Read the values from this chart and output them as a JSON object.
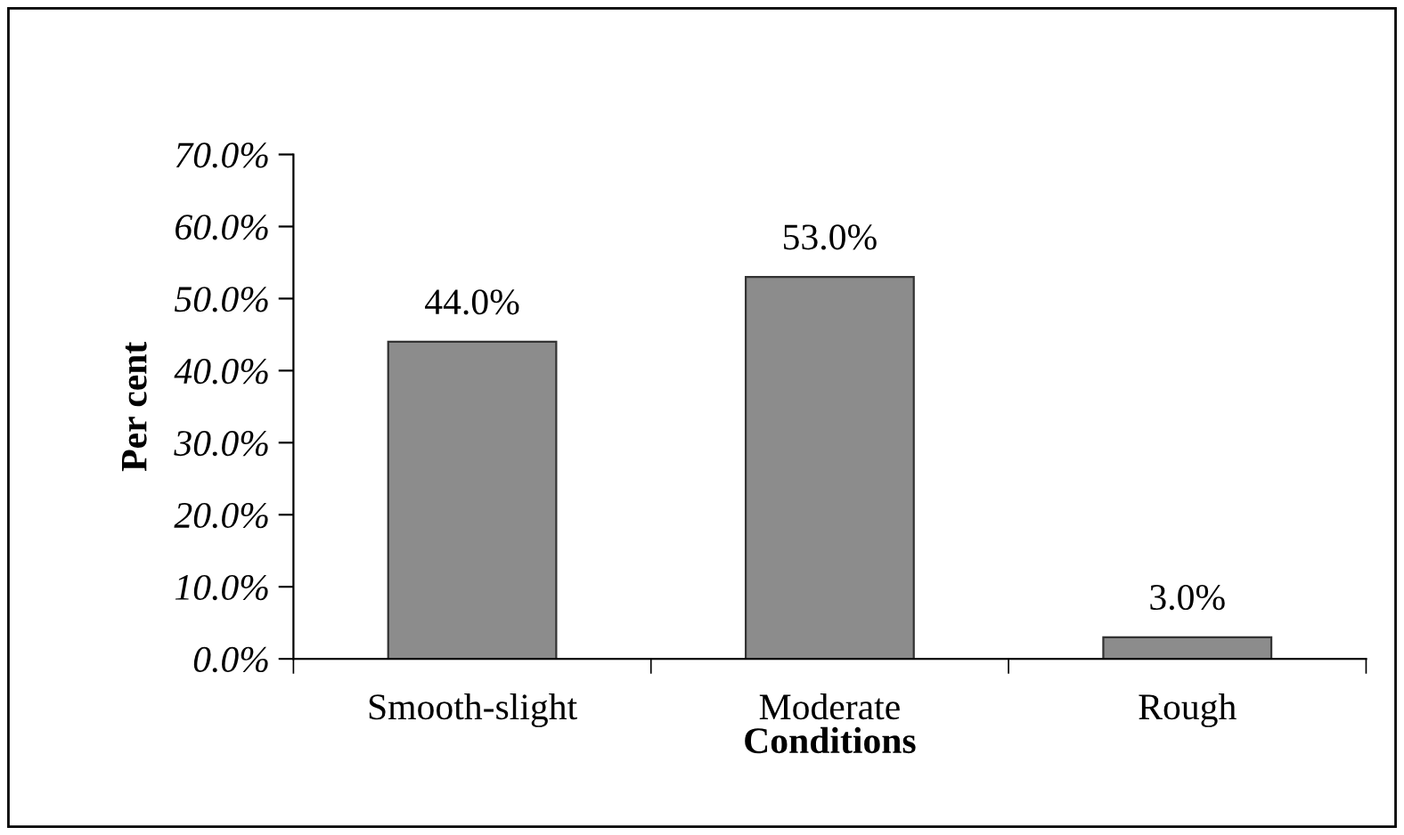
{
  "chart_data": {
    "type": "bar",
    "xlabel": "Conditions",
    "ylabel": "Per cent",
    "categories": [
      "Smooth-slight",
      "Moderate",
      "Rough"
    ],
    "values": [
      44.0,
      53.0,
      3.0
    ],
    "value_labels": [
      "44.0%",
      "53.0%",
      "3.0%"
    ],
    "color": "#8c8c8c",
    "ylim": [
      0,
      70
    ],
    "yticks": [
      {
        "value": 0,
        "label": "0.0%"
      },
      {
        "value": 10,
        "label": "10.0%"
      },
      {
        "value": 20,
        "label": "20.0%"
      },
      {
        "value": 30,
        "label": "30.0%"
      },
      {
        "value": 40,
        "label": "40.0%"
      },
      {
        "value": 50,
        "label": "50.0%"
      },
      {
        "value": 60,
        "label": "60.0%"
      },
      {
        "value": 70,
        "label": "70.0%"
      }
    ],
    "grid": false,
    "legend": false
  }
}
